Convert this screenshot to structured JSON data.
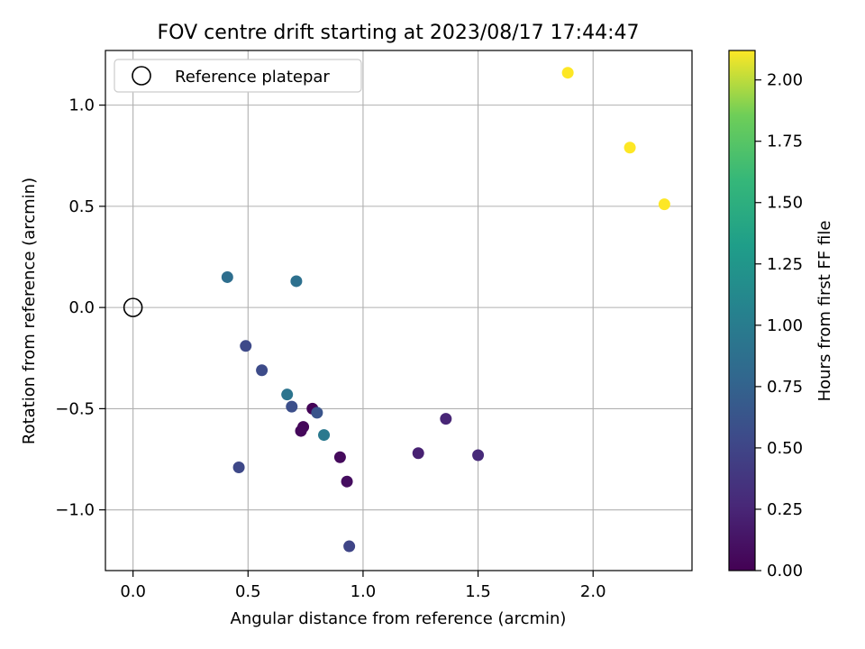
{
  "chart_data": {
    "type": "scatter",
    "title": "FOV centre drift starting at 2023/08/17 17:44:47",
    "xlabel": "Angular distance from reference (arcmin)",
    "ylabel": "Rotation from reference (arcmin)",
    "xlim": [
      -0.12,
      2.43
    ],
    "ylim": [
      -1.3,
      1.27
    ],
    "xticks": [
      0.0,
      0.5,
      1.0,
      1.5,
      2.0
    ],
    "xtick_labels": [
      "0.0",
      "0.5",
      "1.0",
      "1.5",
      "2.0"
    ],
    "yticks": [
      -1.0,
      -0.5,
      0.0,
      0.5,
      1.0
    ],
    "ytick_labels": [
      "−1.0",
      "−0.5",
      "0.0",
      "0.5",
      "1.0"
    ],
    "grid": true,
    "legend": {
      "label": "Reference platepar",
      "position": "top-left"
    },
    "reference_point": {
      "x": 0.0,
      "y": 0.0
    },
    "colorbar": {
      "label": "Hours from first FF file",
      "range": [
        0.0,
        2.12
      ],
      "ticks": [
        0.0,
        0.25,
        0.5,
        0.75,
        1.0,
        1.25,
        1.5,
        1.75,
        2.0
      ],
      "tick_labels": [
        "0.00",
        "0.25",
        "0.50",
        "0.75",
        "1.00",
        "1.25",
        "1.50",
        "1.75",
        "2.00"
      ],
      "colormap": "viridis"
    },
    "points": [
      {
        "x": 0.78,
        "y": -0.5,
        "c": 0.02
      },
      {
        "x": 0.74,
        "y": -0.59,
        "c": 0.04
      },
      {
        "x": 0.73,
        "y": -0.61,
        "c": 0.05
      },
      {
        "x": 0.9,
        "y": -0.74,
        "c": 0.06
      },
      {
        "x": 0.93,
        "y": -0.86,
        "c": 0.08
      },
      {
        "x": 1.24,
        "y": -0.72,
        "c": 0.22
      },
      {
        "x": 1.36,
        "y": -0.55,
        "c": 0.25
      },
      {
        "x": 1.5,
        "y": -0.73,
        "c": 0.28
      },
      {
        "x": 0.94,
        "y": -1.18,
        "c": 0.5
      },
      {
        "x": 0.46,
        "y": -0.79,
        "c": 0.52
      },
      {
        "x": 0.49,
        "y": -0.19,
        "c": 0.54
      },
      {
        "x": 0.56,
        "y": -0.31,
        "c": 0.55
      },
      {
        "x": 0.69,
        "y": -0.49,
        "c": 0.58
      },
      {
        "x": 0.8,
        "y": -0.52,
        "c": 0.62
      },
      {
        "x": 0.41,
        "y": 0.15,
        "c": 0.86
      },
      {
        "x": 0.71,
        "y": 0.13,
        "c": 0.88
      },
      {
        "x": 0.67,
        "y": -0.43,
        "c": 0.92
      },
      {
        "x": 0.83,
        "y": -0.63,
        "c": 0.97
      },
      {
        "x": 1.89,
        "y": 1.16,
        "c": 2.12
      },
      {
        "x": 2.16,
        "y": 0.79,
        "c": 2.12
      },
      {
        "x": 2.31,
        "y": 0.51,
        "c": 2.12
      }
    ]
  }
}
